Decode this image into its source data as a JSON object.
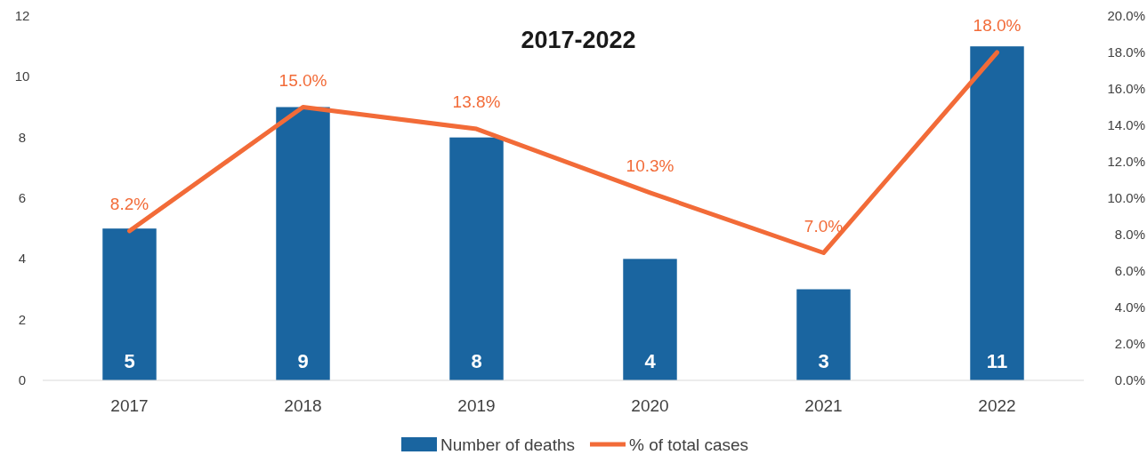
{
  "chart_data": {
    "type": "bar",
    "title": "2017-2022",
    "categories": [
      "2017",
      "2018",
      "2019",
      "2020",
      "2021",
      "2022"
    ],
    "series": [
      {
        "name": "Number of deaths",
        "color": "#1a65a0",
        "values": [
          5,
          9,
          8,
          4,
          3,
          11
        ],
        "value_labels": [
          "5",
          "9",
          "8",
          "4",
          "3",
          "11"
        ]
      },
      {
        "name": "% of total cases",
        "type": "line",
        "axis": "y2",
        "color": "#f26b38",
        "values": [
          8.2,
          15.0,
          13.8,
          10.3,
          7.0,
          18.0
        ],
        "value_labels": [
          "8.2%",
          "15.0%",
          "13.8%",
          "10.3%",
          "7.0%",
          "18.0%"
        ],
        "marker": "none",
        "line_style": "solid"
      }
    ],
    "ylim": [
      0,
      12
    ],
    "yticks": [
      0,
      2,
      4,
      6,
      8,
      10,
      12
    ],
    "y2lim": [
      0,
      20
    ],
    "y2ticks": [
      {
        "value": 0,
        "label": "0.0%"
      },
      {
        "value": 2,
        "label": "2.0%"
      },
      {
        "value": 4,
        "label": "4.0%"
      },
      {
        "value": 6,
        "label": "6.0%"
      },
      {
        "value": 8,
        "label": "8.0%"
      },
      {
        "value": 10,
        "label": "10.0%"
      },
      {
        "value": 12,
        "label": "12.0%"
      },
      {
        "value": 14,
        "label": "14.0%"
      },
      {
        "value": 16,
        "label": "16.0%"
      },
      {
        "value": 18,
        "label": "18.0%"
      },
      {
        "value": 20,
        "label": "20.0%"
      }
    ],
    "grid": false,
    "legend": "bottom"
  }
}
